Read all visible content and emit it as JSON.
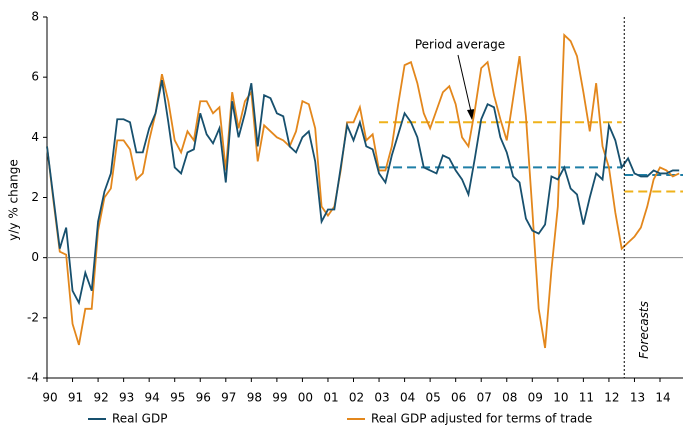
{
  "chart_data": {
    "type": "line",
    "y_label": "y/y % change",
    "x": [
      1990,
      1990.25,
      1990.5,
      1990.75,
      1991,
      1991.25,
      1991.5,
      1991.75,
      1992,
      1992.25,
      1992.5,
      1992.75,
      1993,
      1993.25,
      1993.5,
      1993.75,
      1994,
      1994.25,
      1994.5,
      1994.75,
      1995,
      1995.25,
      1995.5,
      1995.75,
      1996,
      1996.25,
      1996.5,
      1996.75,
      1997,
      1997.25,
      1997.5,
      1997.75,
      1998,
      1998.25,
      1998.5,
      1998.75,
      1999,
      1999.25,
      1999.5,
      1999.75,
      2000,
      2000.25,
      2000.5,
      2000.75,
      2001,
      2001.25,
      2001.5,
      2001.75,
      2002,
      2002.25,
      2002.5,
      2002.75,
      2003,
      2003.25,
      2003.5,
      2003.75,
      2004,
      2004.25,
      2004.5,
      2004.75,
      2005,
      2005.25,
      2005.5,
      2005.75,
      2006,
      2006.25,
      2006.5,
      2006.75,
      2007,
      2007.25,
      2007.5,
      2007.75,
      2008,
      2008.25,
      2008.5,
      2008.75,
      2009,
      2009.25,
      2009.5,
      2009.75,
      2010,
      2010.25,
      2010.5,
      2010.75,
      2011,
      2011.25,
      2011.5,
      2011.75,
      2012,
      2012.25,
      2012.5,
      2012.75,
      2013,
      2013.25,
      2013.5,
      2013.75,
      2014,
      2014.25,
      2014.5,
      2014.75
    ],
    "series": [
      {
        "name": "Real GDP",
        "color": "#17506e",
        "values": [
          3.7,
          2.0,
          0.3,
          1.0,
          -1.1,
          -1.5,
          -0.5,
          -1.1,
          1.2,
          2.2,
          2.8,
          4.6,
          4.6,
          4.5,
          3.5,
          3.5,
          4.3,
          4.8,
          5.9,
          4.5,
          3.0,
          2.8,
          3.5,
          3.6,
          4.8,
          4.1,
          3.8,
          4.3,
          2.5,
          5.2,
          4.0,
          4.8,
          5.8,
          3.7,
          5.4,
          5.3,
          4.8,
          4.7,
          3.7,
          3.5,
          4.0,
          4.2,
          3.2,
          1.2,
          1.6,
          1.6,
          3.0,
          4.4,
          3.9,
          4.5,
          3.7,
          3.6,
          2.8,
          2.5,
          3.4,
          4.1,
          4.8,
          4.5,
          4.0,
          3.0,
          2.9,
          2.8,
          3.4,
          3.3,
          2.9,
          2.6,
          2.1,
          3.3,
          4.6,
          5.1,
          5.0,
          4.0,
          3.5,
          2.7,
          2.5,
          1.3,
          0.9,
          0.8,
          1.1,
          2.7,
          2.6,
          3.0,
          2.3,
          2.1,
          1.1,
          2.0,
          2.8,
          2.6,
          4.4,
          3.9,
          3.0,
          3.3,
          2.8,
          2.7,
          2.7,
          2.9,
          2.8,
          2.8,
          2.9,
          2.9
        ]
      },
      {
        "name": "Real GDP adjusted for terms of trade",
        "color": "#e3871c",
        "values": [
          3.7,
          1.9,
          0.2,
          0.1,
          -2.2,
          -2.9,
          -1.7,
          -1.7,
          0.9,
          2.0,
          2.3,
          3.9,
          3.9,
          3.6,
          2.6,
          2.8,
          3.9,
          4.8,
          6.1,
          5.2,
          3.9,
          3.5,
          4.2,
          3.9,
          5.2,
          5.2,
          4.8,
          5.0,
          2.9,
          5.5,
          4.3,
          5.2,
          5.5,
          3.2,
          4.4,
          4.2,
          4.0,
          3.9,
          3.7,
          4.2,
          5.2,
          5.1,
          4.3,
          1.7,
          1.4,
          1.7,
          2.9,
          4.5,
          4.5,
          5.0,
          3.9,
          4.1,
          2.9,
          2.9,
          3.7,
          5.1,
          6.4,
          6.5,
          5.8,
          4.8,
          4.3,
          4.9,
          5.5,
          5.7,
          5.1,
          4.0,
          3.7,
          4.9,
          6.3,
          6.5,
          5.4,
          4.6,
          3.9,
          5.3,
          6.7,
          4.7,
          1.6,
          -1.7,
          -3.0,
          -0.4,
          1.7,
          7.4,
          7.2,
          6.7,
          5.5,
          4.2,
          5.8,
          3.7,
          3.0,
          1.5,
          0.3,
          0.5,
          0.7,
          1.0,
          1.7,
          2.6,
          3.0,
          2.9,
          2.7,
          2.8
        ]
      }
    ],
    "averages": [
      {
        "color": "#1f7fa6",
        "value": 3.0,
        "x": [
          2003,
          2012.5
        ]
      },
      {
        "color": "#1f7fa6",
        "value": 2.75,
        "x": [
          2012.6,
          2014.9
        ]
      },
      {
        "color": "#efb21a",
        "value": 4.5,
        "x": [
          2003,
          2012.5
        ]
      },
      {
        "color": "#efb21a",
        "value": 2.2,
        "x": [
          2012.6,
          2014.9
        ]
      }
    ],
    "annotation": "Period average",
    "forecast_x": 2012.6,
    "forecast_label": "Forecasts",
    "xlim": [
      1990,
      2014.9
    ],
    "xticks": [
      {
        "value": 1990,
        "label": "90"
      },
      {
        "value": 1991,
        "label": "91"
      },
      {
        "value": 1992,
        "label": "92"
      },
      {
        "value": 1993,
        "label": "93"
      },
      {
        "value": 1994,
        "label": "94"
      },
      {
        "value": 1995,
        "label": "95"
      },
      {
        "value": 1996,
        "label": "96"
      },
      {
        "value": 1997,
        "label": "97"
      },
      {
        "value": 1998,
        "label": "98"
      },
      {
        "value": 1999,
        "label": "99"
      },
      {
        "value": 2000,
        "label": "00"
      },
      {
        "value": 2001,
        "label": "01"
      },
      {
        "value": 2002,
        "label": "02"
      },
      {
        "value": 2003,
        "label": "03"
      },
      {
        "value": 2004,
        "label": "04"
      },
      {
        "value": 2005,
        "label": "05"
      },
      {
        "value": 2006,
        "label": "06"
      },
      {
        "value": 2007,
        "label": "07"
      },
      {
        "value": 2008,
        "label": "08"
      },
      {
        "value": 2009,
        "label": "09"
      },
      {
        "value": 2010,
        "label": "10"
      },
      {
        "value": 2011,
        "label": "11"
      },
      {
        "value": 2012,
        "label": "12"
      },
      {
        "value": 2013,
        "label": "13"
      },
      {
        "value": 2014,
        "label": "14"
      }
    ],
    "ylim": [
      -4,
      8
    ],
    "yticks": [
      -4,
      -2,
      0,
      2,
      4,
      6,
      8
    ]
  }
}
